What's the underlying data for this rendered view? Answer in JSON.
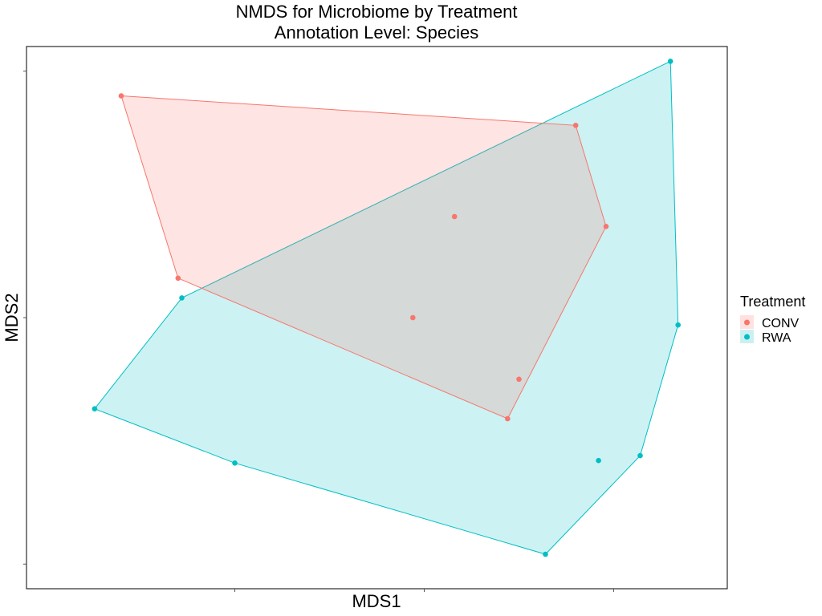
{
  "chart_data": {
    "type": "scatter",
    "title": "NMDS for Microbiome by Treatment",
    "subtitle": "Annotation Level: Species",
    "xlabel": "MDS1",
    "ylabel": "MDS2",
    "x_tick_labels_shown": false,
    "y_tick_labels_shown": false,
    "xlim": [
      -0.55,
      1.3
    ],
    "ylim": [
      -0.55,
      0.55
    ],
    "grid": false,
    "overlay": "convex-hull polygon per group",
    "legend": {
      "title": "Treatment",
      "placement": "right"
    },
    "series": [
      {
        "name": "CONV",
        "color": "#F8766D",
        "fill": "#FFE1E0",
        "points": [
          {
            "x": -0.3,
            "y": 0.45
          },
          {
            "x": 0.9,
            "y": 0.39
          },
          {
            "x": 0.98,
            "y": 0.185
          },
          {
            "x": 0.58,
            "y": 0.205
          },
          {
            "x": 0.47,
            "y": 0.0
          },
          {
            "x": 0.75,
            "y": -0.125
          },
          {
            "x": 0.72,
            "y": -0.205
          },
          {
            "x": -0.15,
            "y": 0.08
          }
        ]
      },
      {
        "name": "RWA",
        "color": "#00BFC4",
        "fill": "#CCF0F2",
        "points": [
          {
            "x": 1.15,
            "y": 0.52
          },
          {
            "x": 1.17,
            "y": -0.015
          },
          {
            "x": 1.07,
            "y": -0.28
          },
          {
            "x": 0.96,
            "y": -0.29
          },
          {
            "x": 0.82,
            "y": -0.48
          },
          {
            "x": 0.0,
            "y": -0.295
          },
          {
            "x": -0.37,
            "y": -0.185
          },
          {
            "x": -0.14,
            "y": 0.04
          }
        ]
      }
    ]
  }
}
